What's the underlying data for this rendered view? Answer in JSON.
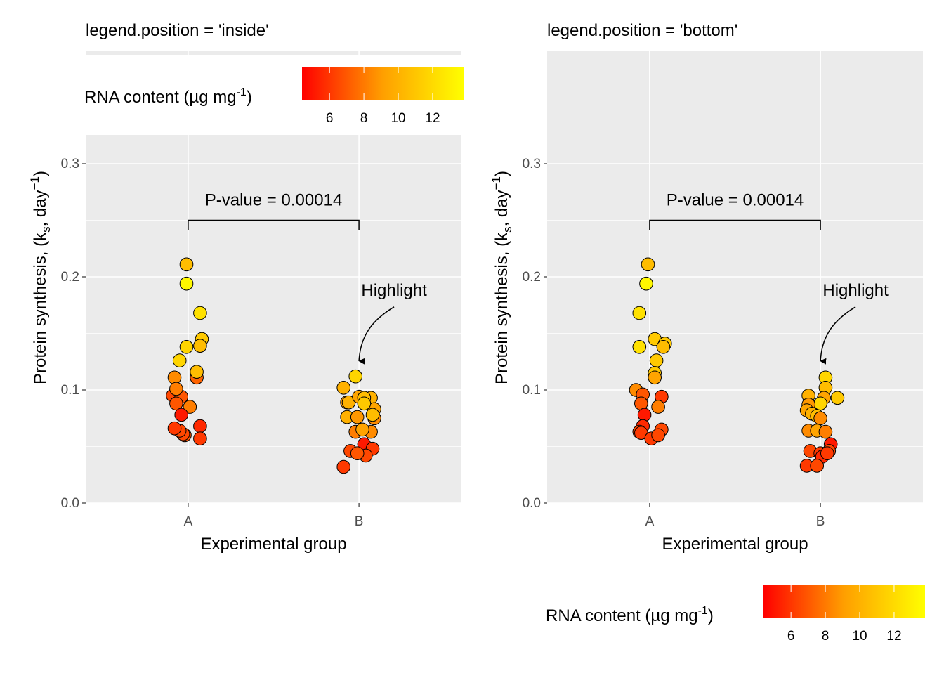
{
  "chart_data": [
    {
      "type": "scatter",
      "title": "legend.position = 'inside'",
      "xlabel": "Experimental group",
      "ylabel": "Protein synthesis, (k_s, day^-1)",
      "ylabel_parts": {
        "main": "Protein synthesis, (k",
        "sub": "s",
        "mid": ", day",
        "sup": "−1",
        "end": ")"
      },
      "categories": [
        "A",
        "B"
      ],
      "ylim": [
        0,
        0.4
      ],
      "yticks": [
        0.0,
        0.1,
        0.2,
        0.3
      ],
      "ytick_labels": [
        "0.0",
        "0.1",
        "0.2",
        "0.3"
      ],
      "grid": true,
      "legend": {
        "placement": "inside-top",
        "title_main": "RNA content (µg mg",
        "title_sup": "-1",
        "title_end": ")",
        "range": [
          4.4,
          13.8
        ],
        "ticks": [
          6,
          8,
          10,
          12
        ],
        "tick_labels": [
          "6",
          "8",
          "10",
          "12"
        ],
        "low_color": "#ff0000",
        "high_color": "#ffff00"
      },
      "annotations": {
        "pvalue_label": "P-value = 0.00014",
        "bracket_y": 0.25,
        "highlight_label": "Highlight",
        "highlight_target": {
          "group": "B",
          "value": 0.12
        }
      },
      "points": [
        {
          "group": "A",
          "jitter": -0.01,
          "value": 0.211,
          "rna": 11.0
        },
        {
          "group": "A",
          "jitter": -0.01,
          "value": 0.194,
          "rna": 13.5
        },
        {
          "group": "A",
          "jitter": 0.07,
          "value": 0.168,
          "rna": 12.5
        },
        {
          "group": "A",
          "jitter": -0.01,
          "value": 0.138,
          "rna": 12.0
        },
        {
          "group": "A",
          "jitter": 0.08,
          "value": 0.145,
          "rna": 11.5
        },
        {
          "group": "A",
          "jitter": 0.07,
          "value": 0.139,
          "rna": 11.0
        },
        {
          "group": "A",
          "jitter": -0.05,
          "value": 0.126,
          "rna": 12.0
        },
        {
          "group": "A",
          "jitter": 0.05,
          "value": 0.111,
          "rna": 7.5
        },
        {
          "group": "A",
          "jitter": 0.05,
          "value": 0.116,
          "rna": 11.0
        },
        {
          "group": "A",
          "jitter": -0.08,
          "value": 0.111,
          "rna": 9.0
        },
        {
          "group": "A",
          "jitter": -0.09,
          "value": 0.095,
          "rna": 6.5
        },
        {
          "group": "A",
          "jitter": -0.04,
          "value": 0.094,
          "rna": 7.0
        },
        {
          "group": "A",
          "jitter": -0.07,
          "value": 0.101,
          "rna": 8.5
        },
        {
          "group": "A",
          "jitter": -0.07,
          "value": 0.088,
          "rna": 7.0
        },
        {
          "group": "A",
          "jitter": 0.01,
          "value": 0.085,
          "rna": 8.5
        },
        {
          "group": "A",
          "jitter": -0.04,
          "value": 0.078,
          "rna": 5.0
        },
        {
          "group": "A",
          "jitter": -0.02,
          "value": 0.06,
          "rna": 7.0
        },
        {
          "group": "A",
          "jitter": -0.03,
          "value": 0.061,
          "rna": 6.5
        },
        {
          "group": "A",
          "jitter": -0.05,
          "value": 0.064,
          "rna": 6.5
        },
        {
          "group": "A",
          "jitter": -0.08,
          "value": 0.066,
          "rna": 6.0
        },
        {
          "group": "A",
          "jitter": 0.07,
          "value": 0.068,
          "rna": 5.5
        },
        {
          "group": "A",
          "jitter": 0.07,
          "value": 0.057,
          "rna": 6.0
        },
        {
          "group": "B",
          "jitter": -0.02,
          "value": 0.112,
          "rna": 12.0
        },
        {
          "group": "B",
          "jitter": -0.09,
          "value": 0.102,
          "rna": 10.5
        },
        {
          "group": "B",
          "jitter": -0.07,
          "value": 0.089,
          "rna": 9.5
        },
        {
          "group": "B",
          "jitter": -0.06,
          "value": 0.089,
          "rna": 10.5
        },
        {
          "group": "B",
          "jitter": 0.0,
          "value": 0.094,
          "rna": 10.0
        },
        {
          "group": "B",
          "jitter": 0.07,
          "value": 0.093,
          "rna": 10.5
        },
        {
          "group": "B",
          "jitter": 0.03,
          "value": 0.093,
          "rna": 11.0
        },
        {
          "group": "B",
          "jitter": 0.09,
          "value": 0.075,
          "rna": 9.0
        },
        {
          "group": "B",
          "jitter": 0.09,
          "value": 0.083,
          "rna": 10.0
        },
        {
          "group": "B",
          "jitter": 0.08,
          "value": 0.078,
          "rna": 11.0
        },
        {
          "group": "B",
          "jitter": 0.03,
          "value": 0.088,
          "rna": 11.5
        },
        {
          "group": "B",
          "jitter": -0.07,
          "value": 0.076,
          "rna": 10.5
        },
        {
          "group": "B",
          "jitter": -0.01,
          "value": 0.076,
          "rna": 9.5
        },
        {
          "group": "B",
          "jitter": -0.02,
          "value": 0.063,
          "rna": 8.5
        },
        {
          "group": "B",
          "jitter": 0.07,
          "value": 0.063,
          "rna": 9.0
        },
        {
          "group": "B",
          "jitter": 0.02,
          "value": 0.065,
          "rna": 10.0
        },
        {
          "group": "B",
          "jitter": 0.03,
          "value": 0.052,
          "rna": 5.0
        },
        {
          "group": "B",
          "jitter": 0.08,
          "value": 0.048,
          "rna": 6.0
        },
        {
          "group": "B",
          "jitter": -0.05,
          "value": 0.046,
          "rna": 6.5
        },
        {
          "group": "B",
          "jitter": 0.04,
          "value": 0.042,
          "rna": 6.5
        },
        {
          "group": "B",
          "jitter": -0.01,
          "value": 0.044,
          "rna": 7.0
        },
        {
          "group": "B",
          "jitter": -0.09,
          "value": 0.032,
          "rna": 6.0
        }
      ]
    },
    {
      "type": "scatter",
      "title": "legend.position = 'bottom'",
      "xlabel": "Experimental group",
      "ylabel": "Protein synthesis, (k_s, day^-1)",
      "ylabel_parts": {
        "main": "Protein synthesis, (k",
        "sub": "s",
        "mid": ", day",
        "sup": "−1",
        "end": ")"
      },
      "categories": [
        "A",
        "B"
      ],
      "ylim": [
        0,
        0.4
      ],
      "yticks": [
        0.0,
        0.1,
        0.2,
        0.3
      ],
      "ytick_labels": [
        "0.0",
        "0.1",
        "0.2",
        "0.3"
      ],
      "grid": true,
      "legend": {
        "placement": "bottom",
        "title_main": "RNA content (µg mg",
        "title_sup": "-1",
        "title_end": ")",
        "range": [
          4.4,
          13.8
        ],
        "ticks": [
          6,
          8,
          10,
          12
        ],
        "tick_labels": [
          "6",
          "8",
          "10",
          "12"
        ],
        "low_color": "#ff0000",
        "high_color": "#ffff00"
      },
      "annotations": {
        "pvalue_label": "P-value = 0.00014",
        "bracket_y": 0.25,
        "highlight_label": "Highlight",
        "highlight_target": {
          "group": "B",
          "value": 0.12
        }
      },
      "points": [
        {
          "group": "A",
          "jitter": -0.01,
          "value": 0.211,
          "rna": 11.0
        },
        {
          "group": "A",
          "jitter": -0.02,
          "value": 0.194,
          "rna": 13.5
        },
        {
          "group": "A",
          "jitter": -0.06,
          "value": 0.168,
          "rna": 12.5
        },
        {
          "group": "A",
          "jitter": -0.06,
          "value": 0.138,
          "rna": 12.5
        },
        {
          "group": "A",
          "jitter": 0.03,
          "value": 0.145,
          "rna": 11.5
        },
        {
          "group": "A",
          "jitter": 0.09,
          "value": 0.141,
          "rna": 11.5
        },
        {
          "group": "A",
          "jitter": 0.08,
          "value": 0.138,
          "rna": 11.0
        },
        {
          "group": "A",
          "jitter": 0.04,
          "value": 0.126,
          "rna": 11.5
        },
        {
          "group": "A",
          "jitter": 0.03,
          "value": 0.115,
          "rna": 11.5
        },
        {
          "group": "A",
          "jitter": 0.03,
          "value": 0.111,
          "rna": 10.0
        },
        {
          "group": "A",
          "jitter": -0.08,
          "value": 0.1,
          "rna": 9.0
        },
        {
          "group": "A",
          "jitter": -0.04,
          "value": 0.096,
          "rna": 7.0
        },
        {
          "group": "A",
          "jitter": 0.07,
          "value": 0.094,
          "rna": 6.0
        },
        {
          "group": "A",
          "jitter": -0.05,
          "value": 0.088,
          "rna": 7.0
        },
        {
          "group": "A",
          "jitter": 0.05,
          "value": 0.085,
          "rna": 8.5
        },
        {
          "group": "A",
          "jitter": -0.03,
          "value": 0.078,
          "rna": 5.0
        },
        {
          "group": "A",
          "jitter": -0.04,
          "value": 0.068,
          "rna": 5.5
        },
        {
          "group": "A",
          "jitter": -0.06,
          "value": 0.063,
          "rna": 6.5
        },
        {
          "group": "A",
          "jitter": -0.05,
          "value": 0.062,
          "rna": 6.0
        },
        {
          "group": "A",
          "jitter": 0.01,
          "value": 0.057,
          "rna": 6.0
        },
        {
          "group": "A",
          "jitter": 0.07,
          "value": 0.065,
          "rna": 6.5
        },
        {
          "group": "A",
          "jitter": 0.05,
          "value": 0.06,
          "rna": 6.5
        },
        {
          "group": "B",
          "jitter": 0.03,
          "value": 0.111,
          "rna": 12.0
        },
        {
          "group": "B",
          "jitter": 0.03,
          "value": 0.102,
          "rna": 11.0
        },
        {
          "group": "B",
          "jitter": -0.07,
          "value": 0.095,
          "rna": 10.5
        },
        {
          "group": "B",
          "jitter": 0.02,
          "value": 0.093,
          "rna": 10.0
        },
        {
          "group": "B",
          "jitter": 0.1,
          "value": 0.093,
          "rna": 11.5
        },
        {
          "group": "B",
          "jitter": 0.0,
          "value": 0.088,
          "rna": 12.0
        },
        {
          "group": "B",
          "jitter": -0.07,
          "value": 0.087,
          "rna": 9.5
        },
        {
          "group": "B",
          "jitter": -0.08,
          "value": 0.082,
          "rna": 10.0
        },
        {
          "group": "B",
          "jitter": -0.05,
          "value": 0.079,
          "rna": 10.5
        },
        {
          "group": "B",
          "jitter": -0.02,
          "value": 0.077,
          "rna": 11.0
        },
        {
          "group": "B",
          "jitter": 0.0,
          "value": 0.075,
          "rna": 9.0
        },
        {
          "group": "B",
          "jitter": -0.07,
          "value": 0.064,
          "rna": 9.0
        },
        {
          "group": "B",
          "jitter": -0.02,
          "value": 0.064,
          "rna": 10.0
        },
        {
          "group": "B",
          "jitter": 0.03,
          "value": 0.063,
          "rna": 8.5
        },
        {
          "group": "B",
          "jitter": 0.06,
          "value": 0.052,
          "rna": 5.0
        },
        {
          "group": "B",
          "jitter": -0.06,
          "value": 0.046,
          "rna": 6.5
        },
        {
          "group": "B",
          "jitter": 0.0,
          "value": 0.044,
          "rna": 6.0
        },
        {
          "group": "B",
          "jitter": 0.01,
          "value": 0.041,
          "rna": 5.5
        },
        {
          "group": "B",
          "jitter": 0.05,
          "value": 0.046,
          "rna": 6.5
        },
        {
          "group": "B",
          "jitter": 0.04,
          "value": 0.044,
          "rna": 6.0
        },
        {
          "group": "B",
          "jitter": -0.08,
          "value": 0.033,
          "rna": 6.0
        },
        {
          "group": "B",
          "jitter": -0.02,
          "value": 0.033,
          "rna": 6.5
        }
      ]
    }
  ]
}
